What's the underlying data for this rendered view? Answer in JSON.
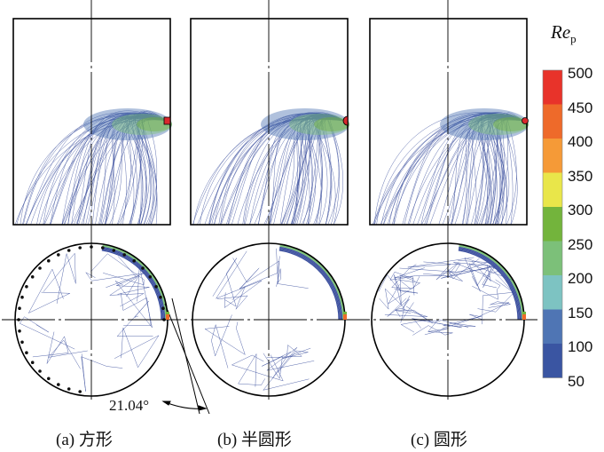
{
  "figure": {
    "legend": {
      "title": "Re",
      "title_sub": "p",
      "ticks": [
        "500",
        "450",
        "400",
        "350",
        "300",
        "250",
        "200",
        "150",
        "100",
        "50"
      ],
      "colors": [
        "#e8332a",
        "#ee6a2a",
        "#f59a37",
        "#e9e64a",
        "#73b43c",
        "#7cc079",
        "#7dc3c2",
        "#4f75b4",
        "#3a55a2"
      ]
    },
    "panels": [
      {
        "caption": "(a) 方形",
        "inlet_shape": "square",
        "inlet_color": "#d9282d"
      },
      {
        "caption": "(b) 半圆形",
        "inlet_shape": "semicircle",
        "inlet_color": "#d9282d"
      },
      {
        "caption": "(c) 圆形",
        "inlet_shape": "circle",
        "inlet_color": "#d9282d"
      }
    ],
    "angle_label": "21.04°",
    "trajectory_color": "#3b4f9e"
  }
}
